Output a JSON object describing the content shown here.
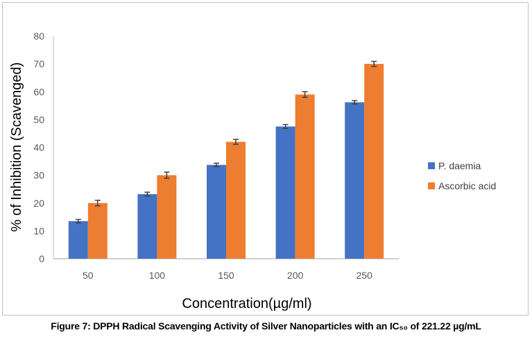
{
  "chart_data": {
    "type": "bar",
    "title": "",
    "xlabel": "Concentration(µg/ml)",
    "ylabel": "% of Inhibition (Scavenged)",
    "categories": [
      "50",
      "100",
      "150",
      "200",
      "250"
    ],
    "ylim": [
      0,
      80
    ],
    "yticks": [
      0,
      10,
      20,
      30,
      40,
      50,
      60,
      70,
      80
    ],
    "grid": false,
    "legend_position": "right",
    "series": [
      {
        "name": "P. daemia",
        "color": "#4472c4",
        "values": [
          13.5,
          23.2,
          33.7,
          47.5,
          56.2
        ],
        "errors": [
          0.6,
          0.7,
          0.6,
          0.7,
          0.6
        ]
      },
      {
        "name": "Ascorbic acid",
        "color": "#ed7d31",
        "values": [
          20.0,
          30.0,
          42.0,
          59.0,
          70.0
        ],
        "errors": [
          1.0,
          1.1,
          0.9,
          1.0,
          0.9
        ]
      }
    ]
  },
  "caption": "Figure 7: DPPH Radical Scavenging Activity of Silver Nanoparticles with an IC₅₀ of 221.22 µg/mL"
}
